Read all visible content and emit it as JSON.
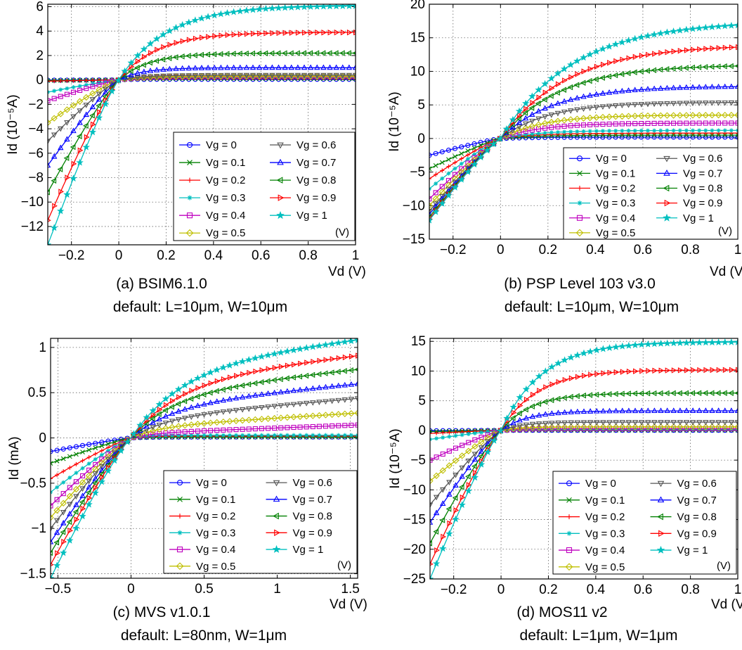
{
  "chart_data": [
    {
      "type": "line",
      "panel": "a",
      "caption": "(a) BSIM6.1.0",
      "subcaption": "default: L=10μm, W=10μm",
      "xlabel": "Vd (V)",
      "ylabel": "Id (10⁻⁵A)",
      "xlim": [
        -0.3,
        1.0
      ],
      "ylim": [
        -13.5,
        6.2
      ],
      "xticks": [
        -0.2,
        0,
        0.2,
        0.4,
        0.6,
        0.8,
        1
      ],
      "xtick_labels": [
        "−0.2",
        "0",
        "0.2",
        "0.4",
        "0.6",
        "0.8",
        "1"
      ],
      "yticks": [
        -12,
        -10,
        -8,
        -6,
        -4,
        -2,
        0,
        2,
        4,
        6
      ],
      "ytick_labels": [
        "−12",
        "−10",
        "−8",
        "−6",
        "−4",
        "−2",
        "0",
        "2",
        "4",
        "6"
      ],
      "grid": true,
      "legend_position": "bottom-right",
      "legend_unit": "(V)",
      "series": [
        {
          "name": "Vg = 0",
          "sat": 0.05,
          "tau": 0.04,
          "neg": -0.02
        },
        {
          "name": "Vg = 0.1",
          "sat": 0.1,
          "tau": 0.05,
          "neg": -0.05
        },
        {
          "name": "Vg = 0.2",
          "sat": 0.15,
          "tau": 0.06,
          "neg": -0.1
        },
        {
          "name": "Vg = 0.3",
          "sat": 0.2,
          "tau": 0.07,
          "neg": -1.0
        },
        {
          "name": "Vg = 0.4",
          "sat": 0.25,
          "tau": 0.08,
          "neg": -1.7
        },
        {
          "name": "Vg = 0.5",
          "sat": 0.3,
          "tau": 0.09,
          "neg": -3.5
        },
        {
          "name": "Vg = 0.6",
          "sat": 0.4,
          "tau": 0.1,
          "neg": -5.0
        },
        {
          "name": "Vg = 0.7",
          "sat": 1.0,
          "tau": 0.1,
          "neg": -7.0
        },
        {
          "name": "Vg = 0.8",
          "sat": 2.2,
          "tau": 0.13,
          "neg": -9.2
        },
        {
          "name": "Vg = 0.9",
          "sat": 3.9,
          "tau": 0.16,
          "neg": -11.5
        },
        {
          "name": "Vg = 1",
          "sat": 6.1,
          "tau": 0.2,
          "neg": -13.5
        }
      ]
    },
    {
      "type": "line",
      "panel": "b",
      "caption": "(b) PSP Level 103  v3.0",
      "subcaption": "default: L=10μm, W=10μm",
      "xlabel": "Vd (V)",
      "ylabel": "Id (10⁻⁵A)",
      "xlim": [
        -0.3,
        1.0
      ],
      "ylim": [
        -15,
        20
      ],
      "xticks": [
        -0.2,
        0,
        0.2,
        0.4,
        0.6,
        0.8,
        1
      ],
      "xtick_labels": [
        "−0.2",
        "0",
        "0.2",
        "0.4",
        "0.6",
        "0.8",
        "1"
      ],
      "yticks": [
        -15,
        -10,
        -5,
        0,
        5,
        10,
        15,
        20
      ],
      "ytick_labels": [
        "−15",
        "−10",
        "−5",
        "0",
        "5",
        "10",
        "15",
        "20"
      ],
      "grid": true,
      "legend_position": "bottom-right",
      "legend_unit": "(V)",
      "series": [
        {
          "name": "Vg = 0",
          "sat": 0.2,
          "tau": 0.15,
          "neg": -2.5
        },
        {
          "name": "Vg = 0.1",
          "sat": 0.5,
          "tau": 0.15,
          "neg": -4.5
        },
        {
          "name": "Vg = 0.2",
          "sat": 0.8,
          "tau": 0.15,
          "neg": -6.0
        },
        {
          "name": "Vg = 0.3",
          "sat": 1.2,
          "tau": 0.16,
          "neg": -7.5
        },
        {
          "name": "Vg = 0.4",
          "sat": 2.3,
          "tau": 0.17,
          "neg": -9.0
        },
        {
          "name": "Vg = 0.5",
          "sat": 3.5,
          "tau": 0.18,
          "neg": -10.0
        },
        {
          "name": "Vg = 0.6",
          "sat": 5.4,
          "tau": 0.2,
          "neg": -10.8
        },
        {
          "name": "Vg = 0.7",
          "sat": 7.8,
          "tau": 0.22,
          "neg": -11.3
        },
        {
          "name": "Vg = 0.8",
          "sat": 11.0,
          "tau": 0.25,
          "neg": -11.7
        },
        {
          "name": "Vg = 0.9",
          "sat": 14.0,
          "tau": 0.28,
          "neg": -12.0
        },
        {
          "name": "Vg = 1",
          "sat": 17.5,
          "tau": 0.3,
          "neg": -12.2
        }
      ]
    },
    {
      "type": "line",
      "panel": "c",
      "caption": "(c) MVS v1.0.1",
      "subcaption": "default: L=80nm, W=1μm",
      "xlabel": "Vd (V)",
      "ylabel": "Id (mA)",
      "xlim": [
        -0.55,
        1.55
      ],
      "ylim": [
        -1.55,
        1.1
      ],
      "xticks": [
        -0.5,
        0,
        0.5,
        1,
        1.5
      ],
      "xtick_labels": [
        "−0.5",
        "0",
        "0.5",
        "1",
        "1.5"
      ],
      "yticks": [
        -1.5,
        -1,
        -0.5,
        0,
        0.5,
        1
      ],
      "ytick_labels": [
        "−1.5",
        "−1",
        "−0.5",
        "0",
        "0.5",
        "1"
      ],
      "grid": true,
      "legend_position": "bottom-right",
      "legend_unit": "(V)",
      "series": [
        {
          "name": "Vg = 0",
          "sat": 0.01,
          "tau": 0.1,
          "slope": 0.0,
          "neg": -0.15
        },
        {
          "name": "Vg = 0.1",
          "sat": 0.01,
          "tau": 0.1,
          "slope": 0.0,
          "neg": -0.28
        },
        {
          "name": "Vg = 0.2",
          "sat": 0.02,
          "tau": 0.1,
          "slope": 0.0,
          "neg": -0.45
        },
        {
          "name": "Vg = 0.3",
          "sat": 0.03,
          "tau": 0.1,
          "slope": 0.0,
          "neg": -0.6
        },
        {
          "name": "Vg = 0.4",
          "sat": 0.05,
          "tau": 0.15,
          "slope": 0.06,
          "neg": -0.75
        },
        {
          "name": "Vg = 0.5",
          "sat": 0.12,
          "tau": 0.2,
          "slope": 0.1,
          "neg": -0.88
        },
        {
          "name": "Vg = 0.6",
          "sat": 0.22,
          "tau": 0.25,
          "slope": 0.14,
          "neg": -1.0
        },
        {
          "name": "Vg = 0.7",
          "sat": 0.35,
          "tau": 0.28,
          "slope": 0.16,
          "neg": -1.15
        },
        {
          "name": "Vg = 0.8",
          "sat": 0.48,
          "tau": 0.3,
          "slope": 0.18,
          "neg": -1.27
        },
        {
          "name": "Vg = 0.9",
          "sat": 0.62,
          "tau": 0.33,
          "slope": 0.19,
          "neg": -1.4
        },
        {
          "name": "Vg = 1",
          "sat": 0.78,
          "tau": 0.35,
          "slope": 0.2,
          "neg": -1.55
        }
      ]
    },
    {
      "type": "line",
      "panel": "d",
      "caption": "(d) MOS11 v2",
      "subcaption": "default: L=1μm, W=1μm",
      "xlabel": "Vd (V)",
      "ylabel": "Id (10⁻⁵A)",
      "xlim": [
        -0.3,
        1.0
      ],
      "ylim": [
        -25,
        15.5
      ],
      "xticks": [
        -0.2,
        0,
        0.2,
        0.4,
        0.6,
        0.8,
        1
      ],
      "xtick_labels": [
        "−0.2",
        "0",
        "0.2",
        "0.4",
        "0.6",
        "0.8",
        "1"
      ],
      "yticks": [
        -25,
        -20,
        -15,
        -10,
        -5,
        0,
        5,
        10,
        15
      ],
      "ytick_labels": [
        "−25",
        "−20",
        "−15",
        "−10",
        "−5",
        "0",
        "5",
        "10",
        "15"
      ],
      "grid": true,
      "legend_position": "bottom-right",
      "legend_unit": "(V)",
      "series": [
        {
          "name": "Vg = 0",
          "sat": 0.02,
          "tau": 0.05,
          "neg": -0.05
        },
        {
          "name": "Vg = 0.1",
          "sat": 0.05,
          "tau": 0.05,
          "neg": -0.2
        },
        {
          "name": "Vg = 0.2",
          "sat": 0.1,
          "tau": 0.05,
          "neg": -0.5
        },
        {
          "name": "Vg = 0.3",
          "sat": 0.15,
          "tau": 0.06,
          "neg": -1.5
        },
        {
          "name": "Vg = 0.4",
          "sat": 0.3,
          "tau": 0.07,
          "neg": -5.0
        },
        {
          "name": "Vg = 0.5",
          "sat": 0.6,
          "tau": 0.08,
          "neg": -8.5
        },
        {
          "name": "Vg = 0.6",
          "sat": 1.4,
          "tau": 0.09,
          "neg": -12.5
        },
        {
          "name": "Vg = 0.7",
          "sat": 3.3,
          "tau": 0.11,
          "neg": -15.5
        },
        {
          "name": "Vg = 0.8",
          "sat": 6.3,
          "tau": 0.13,
          "neg": -19.0
        },
        {
          "name": "Vg = 0.9",
          "sat": 10.2,
          "tau": 0.15,
          "neg": -22.5
        },
        {
          "name": "Vg = 1",
          "sat": 14.9,
          "tau": 0.17,
          "neg": -25.0
        }
      ]
    }
  ],
  "styles": {
    "colors": [
      "#0000ff",
      "#008000",
      "#ff0000",
      "#00bfbf",
      "#bf00bf",
      "#bfbf00",
      "#555555",
      "#0000ff",
      "#008000",
      "#ff0000",
      "#00bfbf"
    ],
    "markers": [
      "circle",
      "x",
      "plus",
      "asterisk",
      "square",
      "diamond",
      "triangle-down",
      "triangle-up",
      "triangle-left",
      "triangle-right",
      "star"
    ]
  }
}
